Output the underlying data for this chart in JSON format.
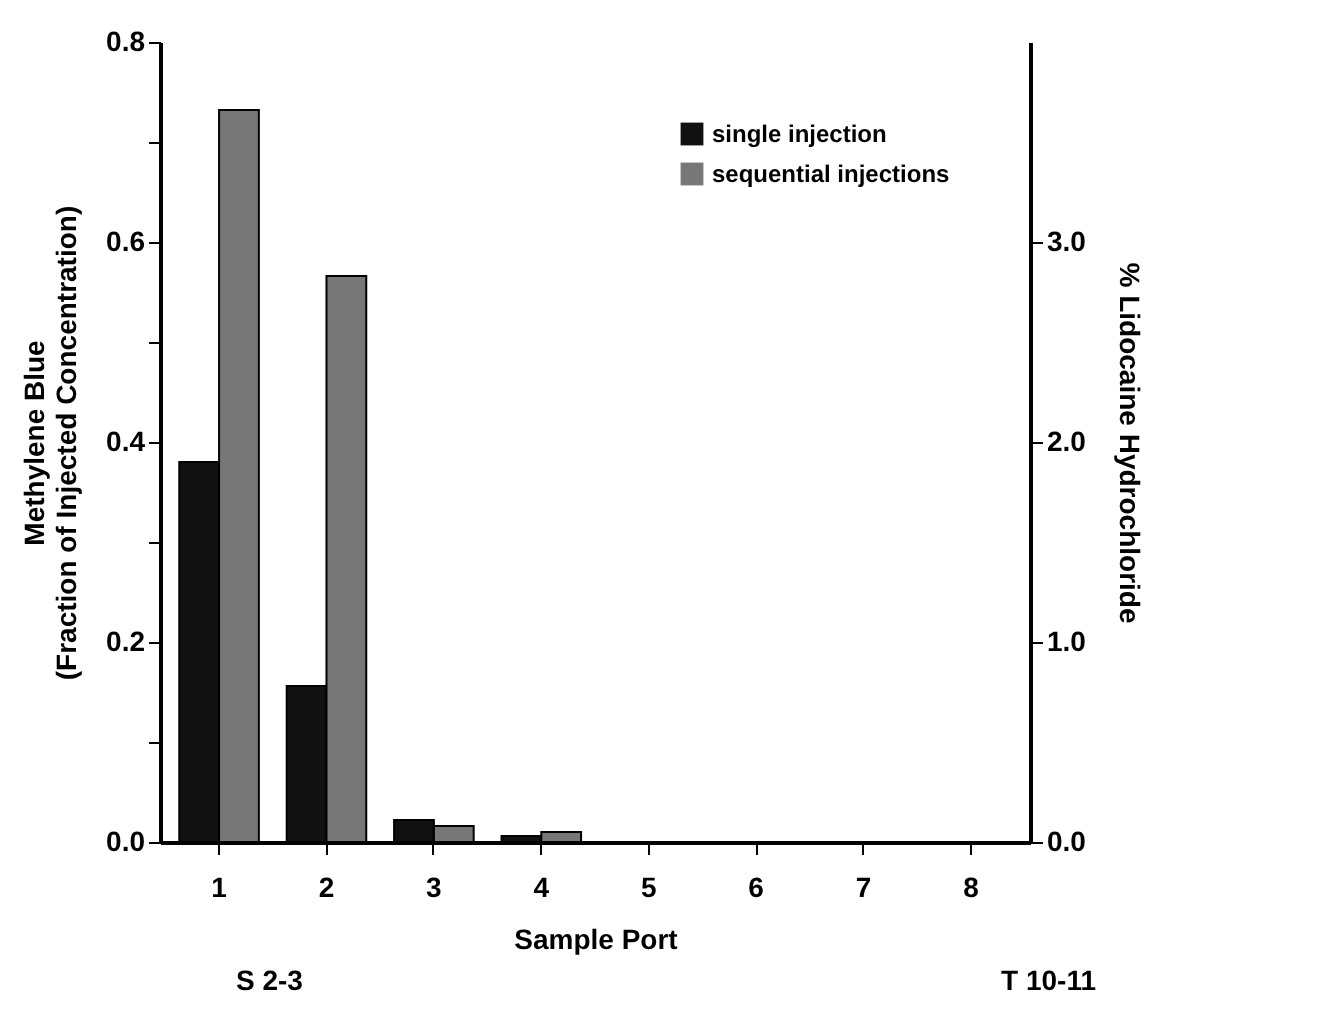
{
  "chart_data": {
    "type": "bar",
    "xlabel": "Sample Port",
    "ylabel": "Methylene Blue\n(Fraction of Injected Concentration)",
    "y2label": "% Lidocaine Hydrochloride",
    "categories": [
      "1",
      "2",
      "3",
      "4",
      "5",
      "6",
      "7",
      "8"
    ],
    "series": [
      {
        "name": "single injection",
        "color": "#111111",
        "values": [
          0.38,
          0.156,
          0.022,
          0.006,
          null,
          null,
          null,
          null
        ]
      },
      {
        "name": "sequential injections",
        "color": "#777777",
        "values": [
          0.732,
          0.566,
          0.016,
          0.01,
          null,
          null,
          null,
          null
        ]
      }
    ],
    "ylim": [
      0,
      0.8
    ],
    "yticks": [
      {
        "value": 0,
        "label": "0.0"
      },
      {
        "value": 0.1,
        "label": null
      },
      {
        "value": 0.2,
        "label": "0.2"
      },
      {
        "value": 0.3,
        "label": null
      },
      {
        "value": 0.4,
        "label": "0.4"
      },
      {
        "value": 0.5,
        "label": null
      },
      {
        "value": 0.6,
        "label": "0.6"
      },
      {
        "value": 0.7,
        "label": null
      },
      {
        "value": 0.8,
        "label": "0.8"
      }
    ],
    "y2lim": [
      0,
      4
    ],
    "y2ticks": [
      {
        "value": 0,
        "label": "0.0"
      },
      {
        "value": 1,
        "label": "1.0"
      },
      {
        "value": 2,
        "label": "2.0"
      },
      {
        "value": 3,
        "label": "3.0"
      }
    ],
    "legend": "top right",
    "grid": false,
    "annotations": [
      "S 2-3",
      "T 10-11"
    ]
  }
}
